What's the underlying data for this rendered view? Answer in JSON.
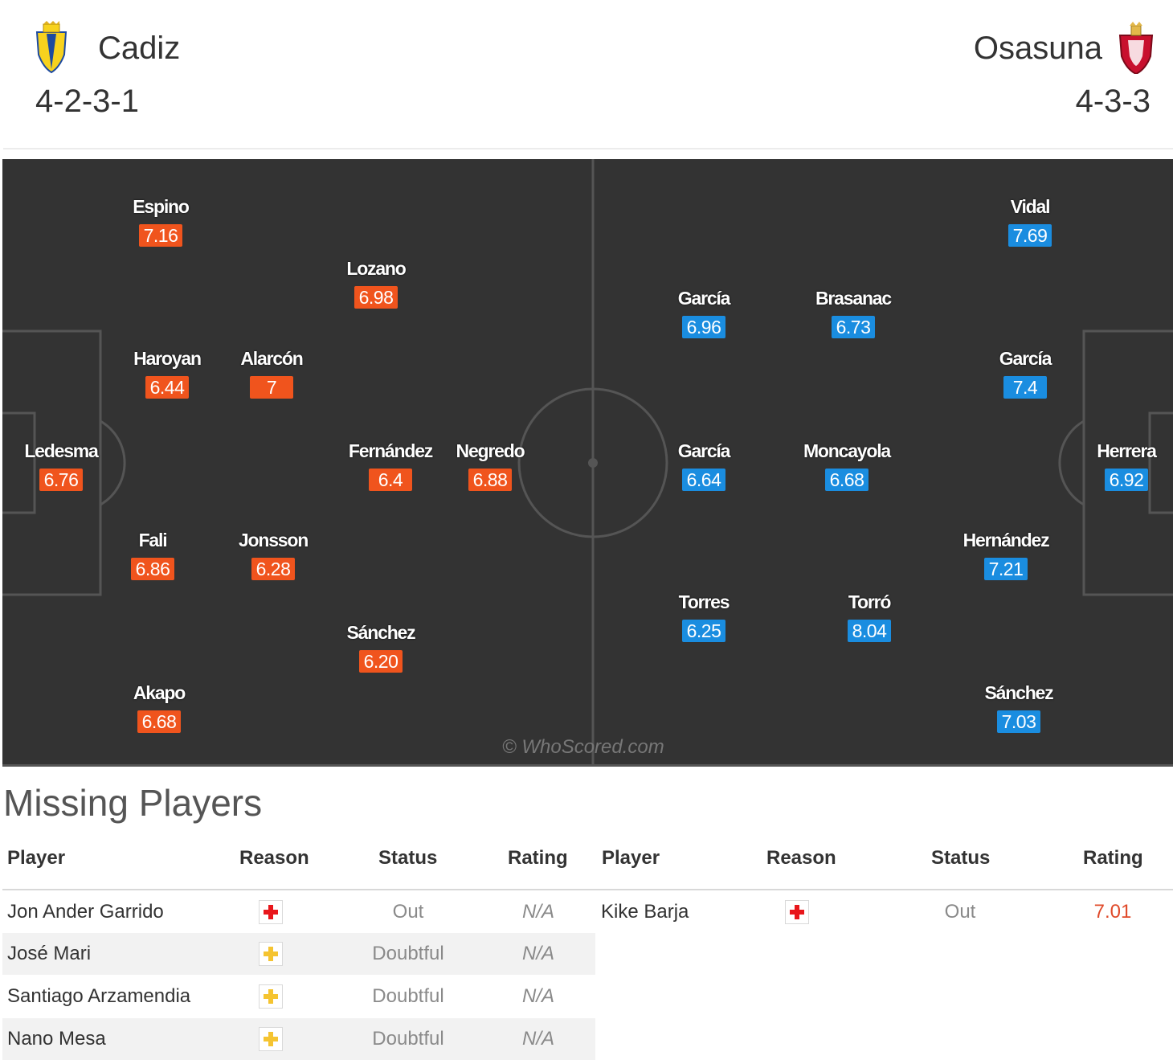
{
  "home": {
    "name": "Cadiz",
    "formation": "4-2-3-1",
    "color": "#f0541d",
    "players": [
      {
        "name": "Espino",
        "rating": "7.16"
      },
      {
        "name": "Lozano",
        "rating": "6.98"
      },
      {
        "name": "Haroyan",
        "rating": "6.44"
      },
      {
        "name": "Alarcón",
        "rating": "7"
      },
      {
        "name": "Ledesma",
        "rating": "6.76"
      },
      {
        "name": "Fernández",
        "rating": "6.4"
      },
      {
        "name": "Negredo",
        "rating": "6.88"
      },
      {
        "name": "Fali",
        "rating": "6.86"
      },
      {
        "name": "Jonsson",
        "rating": "6.28"
      },
      {
        "name": "Sánchez",
        "rating": "6.20"
      },
      {
        "name": "Akapo",
        "rating": "6.68"
      }
    ]
  },
  "away": {
    "name": "Osasuna",
    "formation": "4-3-3",
    "color": "#1a8de0",
    "players": [
      {
        "name": "Vidal",
        "rating": "7.69"
      },
      {
        "name": "García",
        "rating": "6.96"
      },
      {
        "name": "Brasanac",
        "rating": "6.73"
      },
      {
        "name": "García",
        "rating": "7.4"
      },
      {
        "name": "García",
        "rating": "6.64"
      },
      {
        "name": "Moncayola",
        "rating": "6.68"
      },
      {
        "name": "Herrera",
        "rating": "6.92"
      },
      {
        "name": "Hernández",
        "rating": "7.21"
      },
      {
        "name": "Torres",
        "rating": "6.25"
      },
      {
        "name": "Torró",
        "rating": "8.04"
      },
      {
        "name": "Sánchez",
        "rating": "7.03"
      }
    ]
  },
  "watermark": "© WhoScored.com",
  "missing": {
    "title": "Missing Players",
    "headers": {
      "player": "Player",
      "reason": "Reason",
      "status": "Status",
      "rating": "Rating"
    },
    "home_rows": [
      {
        "player": "Jon Ander Garrido",
        "reason": "injury-red-cross-icon",
        "status": "Out",
        "rating": "N/A"
      },
      {
        "player": "José Mari",
        "reason": "doubtful-yellow-cross-icon",
        "status": "Doubtful",
        "rating": "N/A"
      },
      {
        "player": "Santiago Arzamendia",
        "reason": "doubtful-yellow-cross-icon",
        "status": "Doubtful",
        "rating": "N/A"
      },
      {
        "player": "Nano Mesa",
        "reason": "doubtful-yellow-cross-icon",
        "status": "Doubtful",
        "rating": "N/A"
      }
    ],
    "away_rows": [
      {
        "player": "Kike Barja",
        "reason": "injury-red-cross-icon",
        "status": "Out",
        "rating": "7.01"
      }
    ]
  }
}
